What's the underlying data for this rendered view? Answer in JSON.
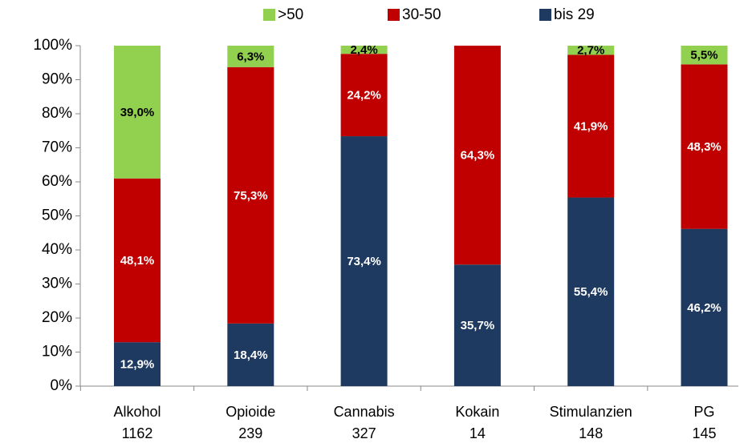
{
  "chart_data": {
    "type": "stacked_bar",
    "categories": [
      [
        "Alkohol",
        "1162"
      ],
      [
        "Opioide",
        "239"
      ],
      [
        "Cannabis",
        "327"
      ],
      [
        "Kokain",
        "14"
      ],
      [
        "Stimulanzien",
        "148"
      ],
      [
        "PG",
        "145"
      ]
    ],
    "series": [
      {
        "name": "bis 29",
        "color": "#1f3a60",
        "values": [
          12.9,
          18.4,
          73.4,
          35.7,
          55.4,
          46.2
        ],
        "value_labels": [
          "12,9%",
          "18,4%",
          "73,4%",
          "35,7%",
          "55,4%",
          "46,2%"
        ]
      },
      {
        "name": "30-50",
        "color": "#c00000",
        "values": [
          48.1,
          75.3,
          24.2,
          64.3,
          41.9,
          48.3
        ],
        "value_labels": [
          "48,1%",
          "75,3%",
          "24,2%",
          "64,3%",
          "41,9%",
          "48,3%"
        ]
      },
      {
        "name": ">50",
        "color": "#92d050",
        "values": [
          39.0,
          6.3,
          2.4,
          0,
          2.7,
          5.5
        ],
        "value_labels": [
          "39,0%",
          "6,3%",
          "2,4%",
          null,
          "2,7%",
          "5,5%"
        ]
      }
    ],
    "ylim": [
      0,
      100
    ],
    "yticks": [
      {
        "value": 0,
        "label": "0%"
      },
      {
        "value": 10,
        "label": "10%"
      },
      {
        "value": 20,
        "label": "20%"
      },
      {
        "value": 30,
        "label": "30%"
      },
      {
        "value": 40,
        "label": "40%"
      },
      {
        "value": 50,
        "label": "50%"
      },
      {
        "value": 60,
        "label": "60%"
      },
      {
        "value": 70,
        "label": "70%"
      },
      {
        "value": 80,
        "label": "80%"
      },
      {
        "value": 90,
        "label": "90%"
      },
      {
        "value": 100,
        "label": "100%"
      }
    ],
    "legend": "top"
  }
}
